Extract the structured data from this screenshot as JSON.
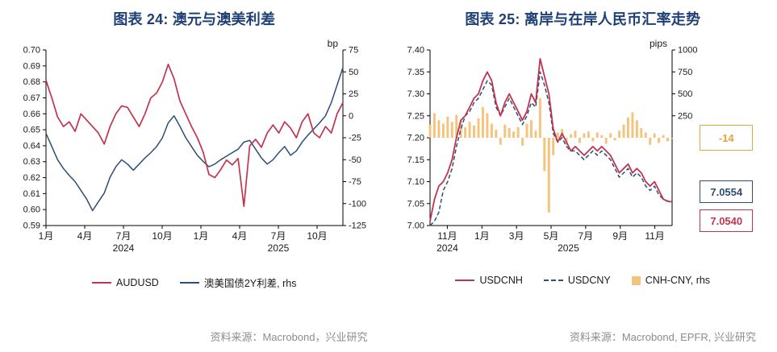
{
  "page": {
    "background": "#ffffff"
  },
  "theme": {
    "red": "#c2344e",
    "navy": "#2e4d77",
    "orange_bar": "#f4c47c",
    "orange_accent": "#e8a33d",
    "title_navy": "#1f4076",
    "source_gray": "#8c8c8c"
  },
  "panels": [
    {
      "title": "图表 24: 澳元与澳美利差",
      "legend": [
        {
          "label": "AUDUSD",
          "color": "#c2344e",
          "swatch": "line"
        },
        {
          "label": "澳美国债2Y利差, rhs",
          "color": "#2e4d77",
          "swatch": "line"
        }
      ],
      "source": "资料来源：Macrobond，兴业研究"
    },
    {
      "title": "图表 25: 离岸与在岸人民币汇率走势",
      "legend": [
        {
          "label": "USDCNH",
          "color": "#c2344e",
          "swatch": "line"
        },
        {
          "label": "USDCNY",
          "color": "#2e4d77",
          "swatch": "dashed-line"
        },
        {
          "label": "CNH-CNY, rhs",
          "color": "#f4c47c",
          "swatch": "square"
        }
      ],
      "callouts": [
        {
          "label": "-14",
          "color": "#e8a33d"
        },
        {
          "label": "7.0554",
          "color": "#2e4d77"
        },
        {
          "label": "7.0540",
          "color": "#c2344e"
        }
      ],
      "source": "资料来源：Macrobond, EPFR, 兴业研究"
    }
  ],
  "chart_data": [
    {
      "type": "line",
      "title": "图表 24: 澳元与澳美利差",
      "x_axis": {
        "range": [
          0,
          23
        ],
        "unit": "months from 2024-01",
        "ticks": [
          {
            "x": 0,
            "label": "1月"
          },
          {
            "x": 3,
            "label": "4月"
          },
          {
            "x": 6,
            "label": "7月"
          },
          {
            "x": 9,
            "label": "10月"
          },
          {
            "x": 12,
            "label": "1月"
          },
          {
            "x": 15,
            "label": "4月"
          },
          {
            "x": 18,
            "label": "7月"
          },
          {
            "x": 21,
            "label": "10月"
          }
        ],
        "year_labels": [
          {
            "x": 6,
            "label": "2024"
          },
          {
            "x": 18,
            "label": "2025"
          }
        ]
      },
      "y_left": {
        "min": 0.59,
        "max": 0.7,
        "tick_labels": [
          "0.70",
          "0.69",
          "0.68",
          "0.67",
          "0.66",
          "0.65",
          "0.64",
          "0.63",
          "0.62",
          "0.61",
          "0.60",
          "0.59"
        ]
      },
      "y_right": {
        "min": -125,
        "max": 75,
        "unit": "bp",
        "tick_labels": [
          "75",
          "50",
          "25",
          "0",
          "-25",
          "-50",
          "-75",
          "-100",
          "-125"
        ]
      },
      "series": [
        {
          "name": "澳美国债2Y利差, rhs",
          "type": "line",
          "axis": "right",
          "color": "#2e4d77",
          "width": 1.5,
          "values": [
            -20,
            -35,
            -50,
            -60,
            -68,
            -75,
            -85,
            -95,
            -108,
            -98,
            -88,
            -70,
            -58,
            -50,
            -55,
            -62,
            -55,
            -48,
            -42,
            -35,
            -25,
            -8,
            0,
            -12,
            -25,
            -35,
            -45,
            -52,
            -58,
            -55,
            -50,
            -46,
            -42,
            -38,
            -30,
            -28,
            -38,
            -48,
            -55,
            -50,
            -42,
            -35,
            -45,
            -40,
            -30,
            -22,
            -15,
            -8,
            0,
            15,
            35,
            55
          ]
        },
        {
          "name": "AUDUSD",
          "type": "line",
          "axis": "left",
          "color": "#c2344e",
          "width": 1.7,
          "values": [
            0.681,
            0.67,
            0.658,
            0.652,
            0.655,
            0.649,
            0.66,
            0.656,
            0.652,
            0.648,
            0.641,
            0.652,
            0.66,
            0.665,
            0.664,
            0.658,
            0.652,
            0.66,
            0.67,
            0.673,
            0.68,
            0.691,
            0.682,
            0.668,
            0.66,
            0.652,
            0.645,
            0.636,
            0.622,
            0.62,
            0.625,
            0.631,
            0.628,
            0.632,
            0.602,
            0.64,
            0.644,
            0.639,
            0.648,
            0.653,
            0.648,
            0.655,
            0.651,
            0.645,
            0.655,
            0.66,
            0.648,
            0.645,
            0.652,
            0.648,
            0.66,
            0.667
          ]
        }
      ]
    },
    {
      "type": "mixed",
      "title": "图表 25: 离岸与在岸人民币汇率走势",
      "x_axis": {
        "range": [
          0,
          14
        ],
        "unit": "months from 2024-10",
        "ticks": [
          {
            "x": 1,
            "label": "11月"
          },
          {
            "x": 3,
            "label": "1月"
          },
          {
            "x": 5,
            "label": "3月"
          },
          {
            "x": 7,
            "label": "5月"
          },
          {
            "x": 9,
            "label": "7月"
          },
          {
            "x": 11,
            "label": "9月"
          },
          {
            "x": 13,
            "label": "11月"
          }
        ],
        "year_labels": [
          {
            "x": 1,
            "label": "2024"
          },
          {
            "x": 8,
            "label": "2025"
          }
        ]
      },
      "y_left": {
        "min": 7.0,
        "max": 7.4,
        "tick_labels": [
          "7.40",
          "7.35",
          "7.30",
          "7.25",
          "7.20",
          "7.15",
          "7.10",
          "7.05",
          "7.00"
        ]
      },
      "y_right": {
        "min": -1000,
        "max": 1000,
        "unit": "pips",
        "tick_labels": [
          "1000",
          "750",
          "500",
          "250"
        ]
      },
      "series": [
        {
          "name": "CNH-CNY, rhs",
          "type": "bar",
          "axis": "right",
          "color": "#f4c47c",
          "values": [
            150,
            280,
            200,
            160,
            240,
            180,
            260,
            200,
            120,
            180,
            140,
            220,
            350,
            280,
            160,
            90,
            -80,
            150,
            110,
            70,
            120,
            -90,
            160,
            200,
            80,
            450,
            -380,
            -850,
            -200,
            60,
            100,
            -80,
            40,
            80,
            -60,
            50,
            70,
            -40,
            60,
            30,
            -70,
            50,
            -30,
            80,
            150,
            230,
            290,
            200,
            110,
            60,
            -80,
            50,
            -60,
            30,
            -40,
            -14
          ]
        },
        {
          "name": "USDCNY",
          "type": "line",
          "axis": "left",
          "color": "#2e4d77",
          "width": 1.5,
          "dash": "5,3",
          "values": [
            7.0,
            7.01,
            7.03,
            7.08,
            7.1,
            7.13,
            7.18,
            7.22,
            7.25,
            7.26,
            7.28,
            7.29,
            7.31,
            7.33,
            7.32,
            7.27,
            7.25,
            7.27,
            7.29,
            7.27,
            7.25,
            7.23,
            7.25,
            7.28,
            7.27,
            7.35,
            7.32,
            7.28,
            7.21,
            7.19,
            7.2,
            7.18,
            7.17,
            7.17,
            7.16,
            7.15,
            7.16,
            7.17,
            7.16,
            7.17,
            7.16,
            7.15,
            7.13,
            7.11,
            7.12,
            7.13,
            7.11,
            7.12,
            7.11,
            7.09,
            7.08,
            7.09,
            7.07,
            7.06,
            7.056,
            7.0554
          ]
        },
        {
          "name": "USDCNH",
          "type": "line",
          "axis": "left",
          "color": "#c2344e",
          "width": 1.8,
          "values": [
            7.01,
            7.06,
            7.09,
            7.1,
            7.12,
            7.15,
            7.2,
            7.24,
            7.25,
            7.27,
            7.29,
            7.3,
            7.33,
            7.35,
            7.33,
            7.28,
            7.25,
            7.28,
            7.3,
            7.28,
            7.26,
            7.24,
            7.26,
            7.3,
            7.28,
            7.38,
            7.34,
            7.3,
            7.22,
            7.19,
            7.21,
            7.19,
            7.17,
            7.18,
            7.17,
            7.16,
            7.17,
            7.18,
            7.17,
            7.18,
            7.17,
            7.16,
            7.14,
            7.12,
            7.13,
            7.14,
            7.12,
            7.13,
            7.12,
            7.1,
            7.09,
            7.1,
            7.08,
            7.06,
            7.055,
            7.054
          ]
        }
      ],
      "latest": {
        "USDCNH": "7.0540",
        "USDCNY": "7.0554",
        "CNH_CNY_pips": "-14"
      }
    }
  ]
}
